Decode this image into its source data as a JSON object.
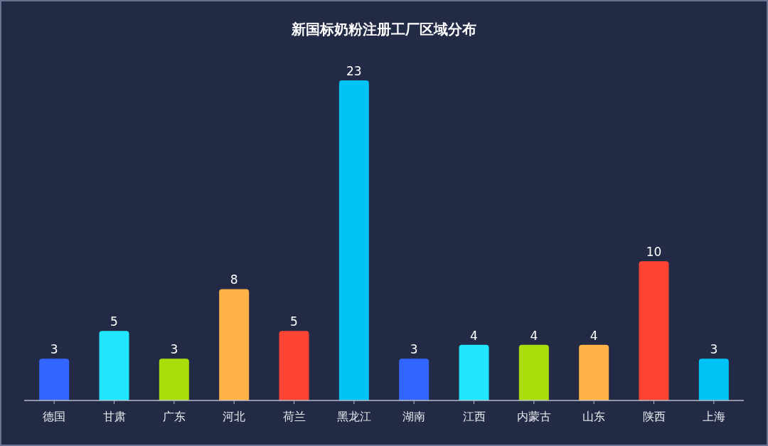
{
  "chart_data": {
    "type": "bar",
    "title": "新国标奶粉注册工厂区域分布",
    "categories": [
      "德国",
      "甘肃",
      "广东",
      "河北",
      "荷兰",
      "黑龙江",
      "湖南",
      "江西",
      "内蒙古",
      "山东",
      "陕西",
      "上海"
    ],
    "values": [
      3,
      5,
      3,
      8,
      5,
      23,
      3,
      4,
      4,
      4,
      10,
      3
    ],
    "colors": [
      "#3366ff",
      "#22e5ff",
      "#aade0a",
      "#ffb347",
      "#ff4433",
      "#00c3f5",
      "#3366ff",
      "#22e5ff",
      "#aade0a",
      "#ffb347",
      "#ff4433",
      "#00c3f5"
    ],
    "data_labels": true
  }
}
